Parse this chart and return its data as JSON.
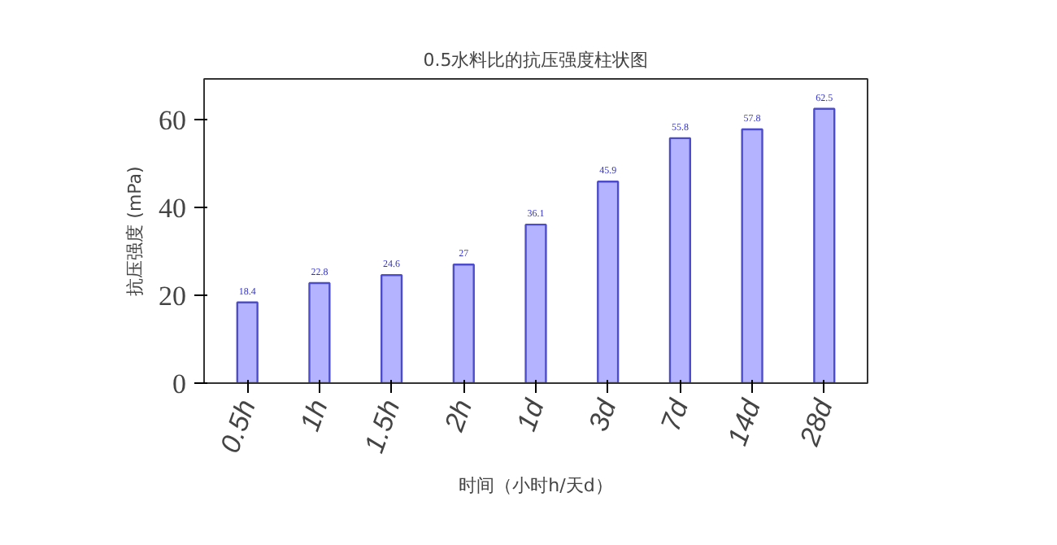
{
  "chart_data": {
    "type": "bar",
    "title": "0.5水料比的抗压强度柱状图",
    "xlabel": "时间（小时h/天d）",
    "ylabel": "抗压强度 (mPa)",
    "categories": [
      "0.5h",
      "1h",
      "1.5h",
      "2h",
      "1d",
      "3d",
      "7d",
      "14d",
      "28d"
    ],
    "values": [
      18.4,
      22.8,
      24.6,
      27,
      36.1,
      45.9,
      55.8,
      57.8,
      62.5
    ],
    "color": "#b3b3ff",
    "ylim": [
      0,
      69.3
    ],
    "yticks": [
      0,
      20,
      40,
      60
    ],
    "grid": false,
    "data_labels": true
  }
}
